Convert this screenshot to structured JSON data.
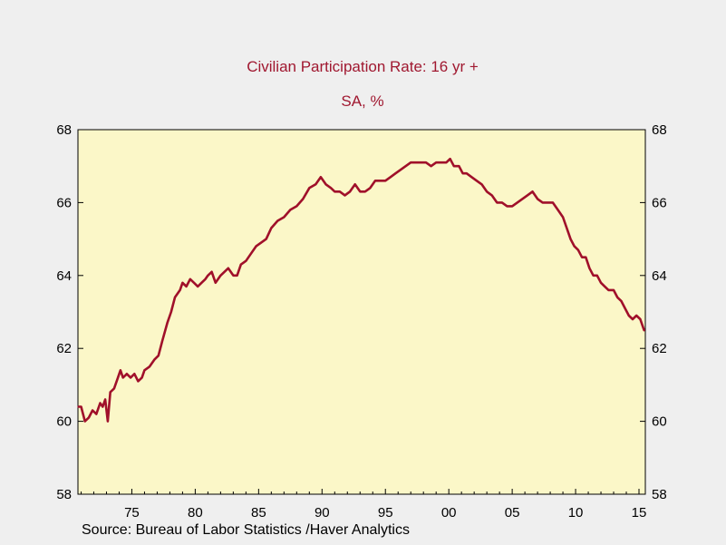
{
  "chart_data": {
    "type": "line",
    "title": "Civilian Participation Rate: 16 yr +",
    "subtitle": "SA, %",
    "source": "Source:  Bureau of Labor Statistics /Haver Analytics",
    "xlim": [
      1970.75,
      2015.5
    ],
    "ylim": [
      58,
      68
    ],
    "x_ticks": [
      {
        "value": 1975,
        "label": "75"
      },
      {
        "value": 1980,
        "label": "80"
      },
      {
        "value": 1985,
        "label": "85"
      },
      {
        "value": 1990,
        "label": "90"
      },
      {
        "value": 1995,
        "label": "95"
      },
      {
        "value": 2000,
        "label": "00"
      },
      {
        "value": 2005,
        "label": "05"
      },
      {
        "value": 2010,
        "label": "10"
      },
      {
        "value": 2015,
        "label": "15"
      }
    ],
    "y_ticks": [
      {
        "value": 58,
        "label": "58"
      },
      {
        "value": 60,
        "label": "60"
      },
      {
        "value": 62,
        "label": "62"
      },
      {
        "value": 64,
        "label": "64"
      },
      {
        "value": 66,
        "label": "66"
      },
      {
        "value": 68,
        "label": "68"
      }
    ],
    "grid": false,
    "colors": {
      "line": "#a0102a",
      "plot_background": "#fbf7c8",
      "title": "#a01830",
      "page_background": "#efefef"
    },
    "series": [
      {
        "x": [
          1970.8,
          1971.0,
          1971.3,
          1971.6,
          1971.9,
          1972.2,
          1972.5,
          1972.7,
          1972.9,
          1973.1,
          1973.3,
          1973.6,
          1973.9,
          1974.1,
          1974.3,
          1974.6,
          1974.9,
          1975.2,
          1975.5,
          1975.8,
          1976.0,
          1976.4,
          1976.8,
          1977.1,
          1977.4,
          1977.8,
          1978.1,
          1978.4,
          1978.8,
          1979.0,
          1979.3,
          1979.6,
          1979.9,
          1980.2,
          1980.5,
          1980.8,
          1981.0,
          1981.3,
          1981.6,
          1982.0,
          1982.3,
          1982.6,
          1983.0,
          1983.3,
          1983.6,
          1984.0,
          1984.4,
          1984.8,
          1985.2,
          1985.6,
          1986.0,
          1986.5,
          1987.0,
          1987.5,
          1988.0,
          1988.5,
          1989.0,
          1989.5,
          1989.9,
          1990.3,
          1990.7,
          1991.0,
          1991.4,
          1991.8,
          1992.2,
          1992.6,
          1993.0,
          1993.4,
          1993.8,
          1994.2,
          1994.6,
          1995.0,
          1995.4,
          1995.8,
          1996.2,
          1996.6,
          1997.0,
          1997.4,
          1997.8,
          1998.2,
          1998.6,
          1999.0,
          1999.4,
          1999.8,
          2000.1,
          2000.4,
          2000.8,
          2001.1,
          2001.4,
          2001.8,
          2002.2,
          2002.6,
          2003.0,
          2003.4,
          2003.8,
          2004.2,
          2004.6,
          2005.0,
          2005.4,
          2005.8,
          2006.2,
          2006.6,
          2007.0,
          2007.4,
          2007.8,
          2008.2,
          2008.6,
          2009.0,
          2009.3,
          2009.6,
          2009.9,
          2010.2,
          2010.5,
          2010.8,
          2011.1,
          2011.4,
          2011.7,
          2012.0,
          2012.3,
          2012.6,
          2013.0,
          2013.3,
          2013.6,
          2013.9,
          2014.2,
          2014.5,
          2014.8,
          2015.1,
          2015.4
        ],
        "y": [
          60.4,
          60.4,
          60.0,
          60.1,
          60.3,
          60.2,
          60.5,
          60.4,
          60.6,
          60.0,
          60.8,
          60.9,
          61.2,
          61.4,
          61.2,
          61.3,
          61.2,
          61.3,
          61.1,
          61.2,
          61.4,
          61.5,
          61.7,
          61.8,
          62.2,
          62.7,
          63.0,
          63.4,
          63.6,
          63.8,
          63.7,
          63.9,
          63.8,
          63.7,
          63.8,
          63.9,
          64.0,
          64.1,
          63.8,
          64.0,
          64.1,
          64.2,
          64.0,
          64.0,
          64.3,
          64.4,
          64.6,
          64.8,
          64.9,
          65.0,
          65.3,
          65.5,
          65.6,
          65.8,
          65.9,
          66.1,
          66.4,
          66.5,
          66.7,
          66.5,
          66.4,
          66.3,
          66.3,
          66.2,
          66.3,
          66.5,
          66.3,
          66.3,
          66.4,
          66.6,
          66.6,
          66.6,
          66.7,
          66.8,
          66.9,
          67.0,
          67.1,
          67.1,
          67.1,
          67.1,
          67.0,
          67.1,
          67.1,
          67.1,
          67.2,
          67.0,
          67.0,
          66.8,
          66.8,
          66.7,
          66.6,
          66.5,
          66.3,
          66.2,
          66.0,
          66.0,
          65.9,
          65.9,
          66.0,
          66.1,
          66.2,
          66.3,
          66.1,
          66.0,
          66.0,
          66.0,
          65.8,
          65.6,
          65.3,
          65.0,
          64.8,
          64.7,
          64.5,
          64.5,
          64.2,
          64.0,
          64.0,
          63.8,
          63.7,
          63.6,
          63.6,
          63.4,
          63.3,
          63.1,
          62.9,
          62.8,
          62.9,
          62.8,
          62.5
        ]
      }
    ]
  }
}
